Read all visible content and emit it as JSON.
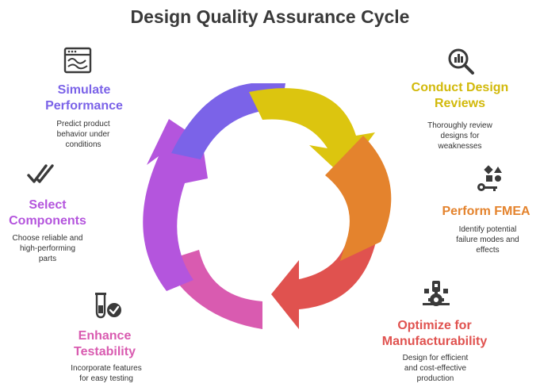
{
  "title": "Design Quality Assurance Cycle",
  "steps": [
    {
      "id": "simulate",
      "label_lines": [
        "Simulate",
        "Performance"
      ],
      "desc_lines": [
        "Predict product",
        "behavior under",
        "conditions"
      ],
      "color": "#7b63e8",
      "icon": "chart-window-icon"
    },
    {
      "id": "review",
      "label_lines": [
        "Conduct Design",
        "Reviews"
      ],
      "desc_lines": [
        "Thoroughly review",
        "designs for",
        "weaknesses"
      ],
      "color": "#dcc50f",
      "icon": "magnifier-icon"
    },
    {
      "id": "fmea",
      "label_lines": [
        "Perform FMEA"
      ],
      "desc_lines": [
        "Identify potential",
        "failure modes and",
        "effects"
      ],
      "color": "#e4832d",
      "icon": "shapes-key-icon"
    },
    {
      "id": "optimize",
      "label_lines": [
        "Optimize for",
        "Manufacturability"
      ],
      "desc_lines": [
        "Design for efficient",
        "and cost-effective",
        "production"
      ],
      "color": "#e0524f",
      "icon": "factory-gear-icon"
    },
    {
      "id": "testability",
      "label_lines": [
        "Enhance",
        "Testability"
      ],
      "desc_lines": [
        "Incorporate features",
        "for easy testing"
      ],
      "color": "#d95bb0",
      "icon": "test-tube-check-icon"
    },
    {
      "id": "select",
      "label_lines": [
        "Select",
        "Components"
      ],
      "desc_lines": [
        "Choose reliable and",
        "high-performing",
        "parts"
      ],
      "color": "#b455dd",
      "icon": "double-check-icon"
    }
  ]
}
